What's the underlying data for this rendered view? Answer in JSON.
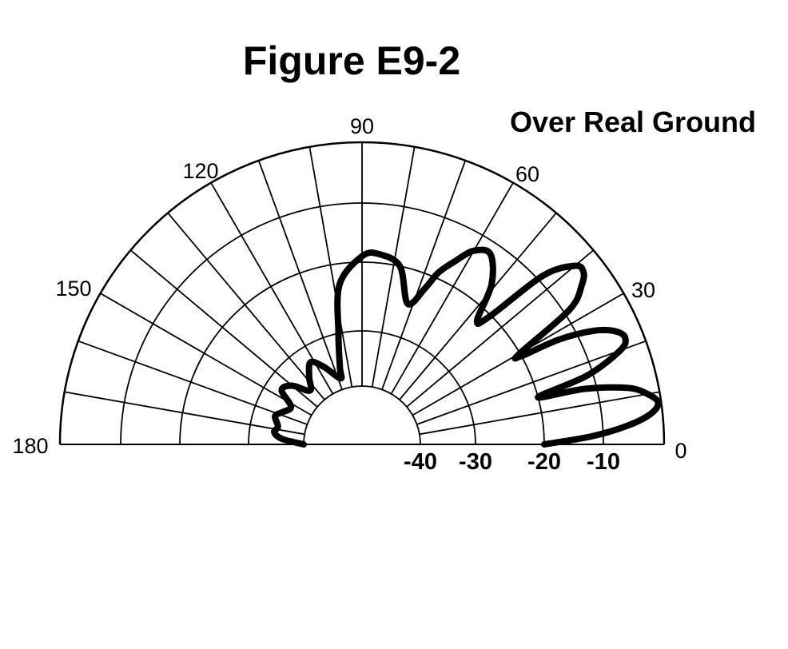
{
  "title": "Figure E9-2",
  "subtitle": "Over Real Ground",
  "chart_data": {
    "type": "polar",
    "angular_axis": {
      "range": [
        0,
        180
      ],
      "grid_step": 10,
      "tick_labels": [
        "0",
        "30",
        "60",
        "90",
        "120",
        "150",
        "180"
      ],
      "tick_values": [
        0,
        30,
        60,
        90,
        120,
        150,
        180
      ]
    },
    "radial_axis": {
      "tick_labels": [
        "-40",
        "-30",
        "-20",
        "-10"
      ],
      "ring_values": [
        -40,
        -30,
        -20,
        -10,
        0
      ],
      "range": [
        -50,
        0
      ]
    },
    "grid": true,
    "series": [
      {
        "pattern_db": [
          [
            0,
            -20
          ],
          [
            2,
            -12
          ],
          [
            4,
            -6
          ],
          [
            6,
            -2
          ],
          [
            8,
            -0.5
          ],
          [
            10,
            -2
          ],
          [
            12,
            -5
          ],
          [
            14,
            -12
          ],
          [
            15,
            -20
          ],
          [
            17,
            -11
          ],
          [
            20,
            -4.5
          ],
          [
            22,
            -3
          ],
          [
            24,
            -4
          ],
          [
            26,
            -7
          ],
          [
            28,
            -13
          ],
          [
            29,
            -20
          ],
          [
            30,
            -20
          ],
          [
            33,
            -9
          ],
          [
            36,
            -5
          ],
          [
            38,
            -3.5
          ],
          [
            40,
            -4
          ],
          [
            43,
            -9
          ],
          [
            45,
            -20
          ],
          [
            47,
            -22
          ],
          [
            51,
            -16
          ],
          [
            56,
            -12
          ],
          [
            60,
            -13
          ],
          [
            63,
            -16
          ],
          [
            66,
            -19
          ],
          [
            68,
            -22
          ],
          [
            72,
            -25
          ],
          [
            78,
            -20
          ],
          [
            85,
            -18.5
          ],
          [
            90,
            -19
          ],
          [
            98,
            -23
          ],
          [
            102,
            -30
          ],
          [
            106,
            -36
          ],
          [
            108,
            -38
          ],
          [
            116,
            -35
          ],
          [
            122,
            -33
          ],
          [
            128,
            -35
          ],
          [
            134,
            -37
          ],
          [
            140,
            -34
          ],
          [
            146,
            -33
          ],
          [
            152,
            -36
          ],
          [
            158,
            -35
          ],
          [
            162,
            -34
          ],
          [
            168,
            -35
          ],
          [
            172,
            -34.5
          ],
          [
            176,
            -36
          ],
          [
            180,
            -40
          ]
        ]
      }
    ]
  }
}
